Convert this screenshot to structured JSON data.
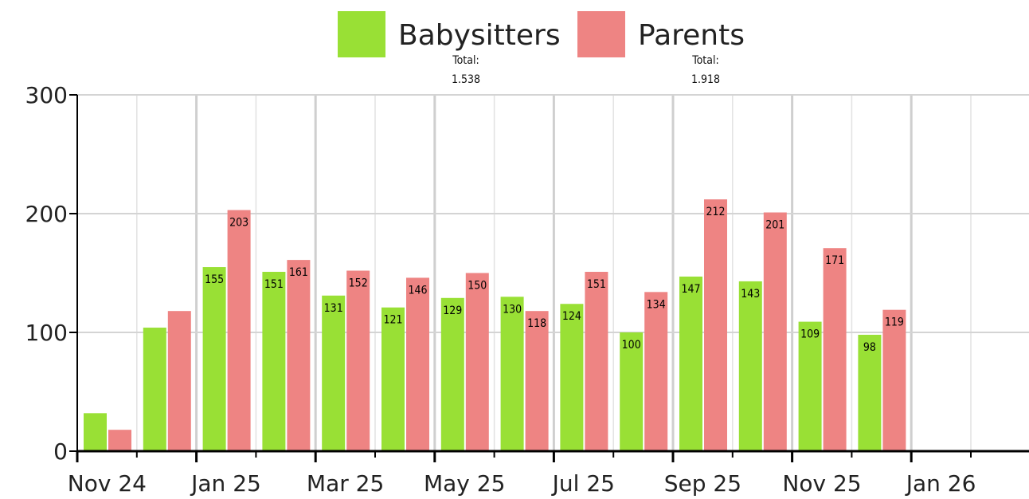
{
  "chart_data": {
    "type": "bar",
    "categories": [
      "Nov 24",
      null,
      "Jan 25",
      null,
      "Mar 25",
      null,
      "May 25",
      null,
      "Jul 25",
      null,
      "Sep 25",
      null,
      "Nov 25",
      null,
      "Jan 26",
      null
    ],
    "series": [
      {
        "name": "Babysitters",
        "color": "#99e035",
        "total_title": "Total:",
        "total": "1.538",
        "values": [
          32,
          104,
          155,
          151,
          131,
          121,
          129,
          130,
          124,
          100,
          147,
          143,
          109,
          98,
          null,
          null
        ],
        "value_labels": [
          null,
          null,
          "155",
          "151",
          "131",
          "121",
          "129",
          "130",
          "124",
          "100",
          "147",
          "143",
          "109",
          "98",
          null,
          null
        ]
      },
      {
        "name": "Parents",
        "color": "#ee8483",
        "total_title": "Total:",
        "total": "1.918",
        "values": [
          18,
          118,
          203,
          161,
          152,
          146,
          150,
          118,
          151,
          134,
          212,
          201,
          171,
          119,
          null,
          null
        ],
        "value_labels": [
          null,
          null,
          "203",
          "161",
          "152",
          "146",
          "150",
          "118",
          "151",
          "134",
          "212",
          "201",
          "171",
          "119",
          null,
          null
        ]
      }
    ],
    "ylim": [
      0,
      300
    ],
    "yticks": [
      0,
      100,
      200,
      300
    ],
    "grid": true
  }
}
